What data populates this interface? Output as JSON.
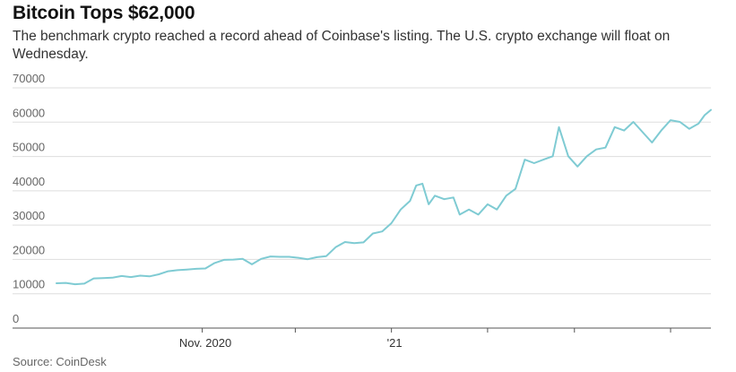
{
  "title": "Bitcoin Tops $62,000",
  "subtitle": "The benchmark crypto reached a record ahead of Coinbase's listing. The U.S. crypto exchange will float on Wednesday.",
  "source": "Source: CoinDesk",
  "colors": {
    "line": "#7fcbd3",
    "grid": "#dddddd",
    "axis": "#555555",
    "text": "#666666"
  },
  "chart_data": {
    "type": "line",
    "title": "Bitcoin Tops $62,000",
    "xlabel": "",
    "ylabel": "",
    "ylim": [
      0,
      70000
    ],
    "yticks": [
      0,
      10000,
      20000,
      30000,
      40000,
      50000,
      60000,
      70000
    ],
    "ytick_labels": [
      "0",
      "10000",
      "20000",
      "30000",
      "40000",
      "50000",
      "60000",
      "70000"
    ],
    "xlim": [
      "2020-09-14",
      "2021-04-13"
    ],
    "xticks": [
      "2020-10-31",
      "2020-11-30",
      "2020-12-31",
      "2021-01-31",
      "2021-02-28",
      "2021-03-31"
    ],
    "xtick_labels": [
      {
        "date": "2020-11-01",
        "label": "Nov. 2020"
      },
      {
        "date": "2021-01-01",
        "label": "'21"
      }
    ],
    "grid": true,
    "legend": "none",
    "series": [
      {
        "name": "",
        "x": [
          "2020-09-14",
          "2020-09-17",
          "2020-09-20",
          "2020-09-23",
          "2020-09-26",
          "2020-09-29",
          "2020-10-02",
          "2020-10-05",
          "2020-10-08",
          "2020-10-11",
          "2020-10-14",
          "2020-10-17",
          "2020-10-20",
          "2020-10-23",
          "2020-10-26",
          "2020-10-29",
          "2020-11-01",
          "2020-11-04",
          "2020-11-07",
          "2020-11-10",
          "2020-11-13",
          "2020-11-16",
          "2020-11-19",
          "2020-11-22",
          "2020-11-25",
          "2020-11-28",
          "2020-12-01",
          "2020-12-04",
          "2020-12-07",
          "2020-12-10",
          "2020-12-13",
          "2020-12-16",
          "2020-12-19",
          "2020-12-22",
          "2020-12-25",
          "2020-12-28",
          "2020-12-31",
          "2021-01-03",
          "2021-01-06",
          "2021-01-08",
          "2021-01-10",
          "2021-01-12",
          "2021-01-14",
          "2021-01-17",
          "2021-01-20",
          "2021-01-22",
          "2021-01-25",
          "2021-01-28",
          "2021-01-31",
          "2021-02-03",
          "2021-02-06",
          "2021-02-09",
          "2021-02-12",
          "2021-02-15",
          "2021-02-18",
          "2021-02-21",
          "2021-02-23",
          "2021-02-26",
          "2021-03-01",
          "2021-03-04",
          "2021-03-07",
          "2021-03-10",
          "2021-03-13",
          "2021-03-16",
          "2021-03-19",
          "2021-03-22",
          "2021-03-25",
          "2021-03-28",
          "2021-03-31",
          "2021-04-03",
          "2021-04-06",
          "2021-04-09",
          "2021-04-11",
          "2021-04-13"
        ],
        "y": [
          11500,
          11600,
          11200,
          11400,
          12900,
          13000,
          13100,
          13600,
          13300,
          13700,
          13500,
          14100,
          15000,
          15300,
          15500,
          15700,
          15800,
          17400,
          18300,
          18400,
          18600,
          17000,
          18600,
          19300,
          19200,
          19200,
          18900,
          18500,
          19100,
          19400,
          22000,
          23500,
          23200,
          23400,
          26000,
          26600,
          29000,
          33000,
          35500,
          40000,
          40500,
          34500,
          37000,
          36000,
          36500,
          31500,
          33000,
          31500,
          34500,
          33000,
          37000,
          39000,
          47500,
          46500,
          47500,
          48500,
          57000,
          48500,
          45500,
          48500,
          50500,
          51000,
          57000,
          56000,
          58500,
          55500,
          52500,
          56000,
          59000,
          58500,
          56500,
          58000,
          60500,
          62000
        ]
      }
    ]
  }
}
